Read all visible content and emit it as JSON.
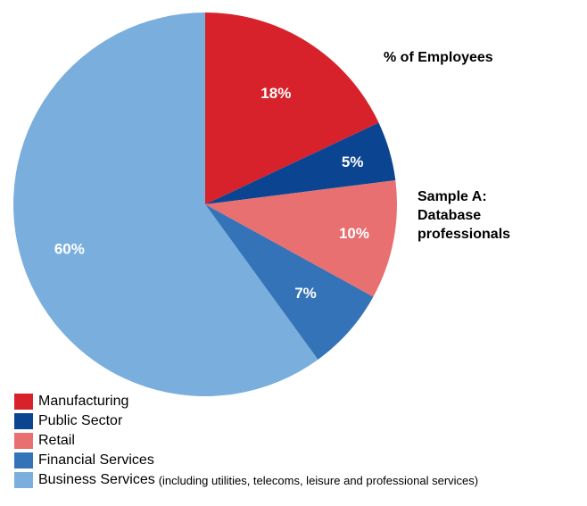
{
  "chart_data": {
    "type": "pie",
    "title": "% of Employees",
    "subtitle": "Sample A:\nDatabase\nprofessionals",
    "slices": [
      {
        "name": "Manufacturing",
        "value": 18,
        "label": "18%",
        "color": "#d7222b",
        "note": ""
      },
      {
        "name": "Public Sector",
        "value": 5,
        "label": "5%",
        "color": "#0b4592",
        "note": ""
      },
      {
        "name": "Retail",
        "value": 10,
        "label": "10%",
        "color": "#e87070",
        "note": ""
      },
      {
        "name": "Financial Services",
        "value": 7,
        "label": "7%",
        "color": "#3473b8",
        "note": ""
      },
      {
        "name": "Business Services",
        "value": 60,
        "label": "60%",
        "color": "#7aaedd",
        "note": "(including utilities, telecoms, leisure and professional services)"
      }
    ],
    "legend_position": "bottom-left"
  }
}
